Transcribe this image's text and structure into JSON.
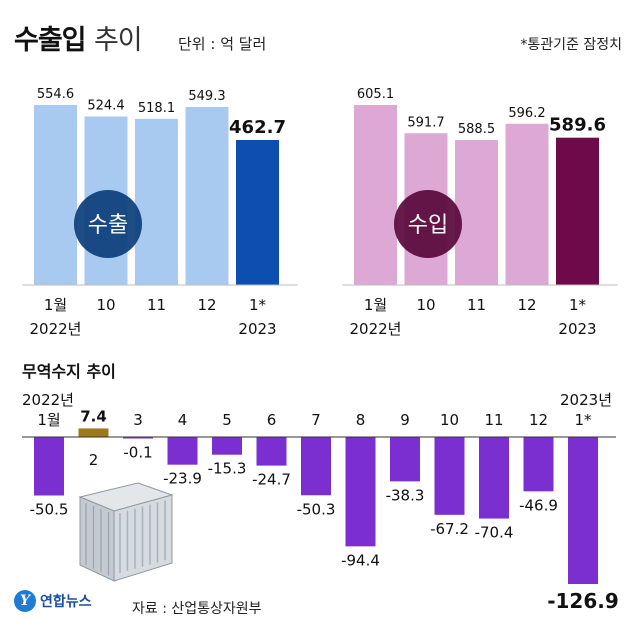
{
  "header": {
    "title_bold": "수출입",
    "title_light": "추이",
    "unit": "단위 : 억 달러",
    "note": "*통관기준 잠정치"
  },
  "balance_section": {
    "title": "무역수지 추이"
  },
  "footer": {
    "logo": "연합뉴스",
    "source": "자료 : 산업통상자원부"
  },
  "chart_data": [
    {
      "type": "bar",
      "name": "수출",
      "categories": [
        "1월",
        "10",
        "11",
        "12",
        "1*"
      ],
      "year_labels": [
        "2022년",
        "",
        "",
        "",
        "2023"
      ],
      "values": [
        554.6,
        524.4,
        518.1,
        549.3,
        462.7
      ],
      "badge": "수출",
      "colors": {
        "bar": "#a8caf0",
        "highlight": "#0d4fb0",
        "badge": "#0d3f7c"
      }
    },
    {
      "type": "bar",
      "name": "수입",
      "categories": [
        "1월",
        "10",
        "11",
        "12",
        "1*"
      ],
      "year_labels": [
        "2022년",
        "",
        "",
        "",
        "2023"
      ],
      "values": [
        605.1,
        591.7,
        588.5,
        596.2,
        589.6
      ],
      "badge": "수입",
      "colors": {
        "bar": "#dea8d4",
        "highlight": "#6e0a4a",
        "badge": "#5a0a3c"
      }
    },
    {
      "type": "bar",
      "name": "무역수지",
      "categories": [
        "1월",
        "2",
        "3",
        "4",
        "5",
        "6",
        "7",
        "8",
        "9",
        "10",
        "11",
        "12",
        "1*"
      ],
      "year_start_label": "2022년",
      "year_end_label": "2023년",
      "values": [
        -50.5,
        7.4,
        -0.1,
        -23.9,
        -15.3,
        -24.7,
        -50.3,
        -94.4,
        -38.3,
        -67.2,
        -70.4,
        -46.9,
        -126.9
      ],
      "colors": {
        "negative": "#7b2fd0",
        "positive": "#a0781c"
      }
    }
  ]
}
